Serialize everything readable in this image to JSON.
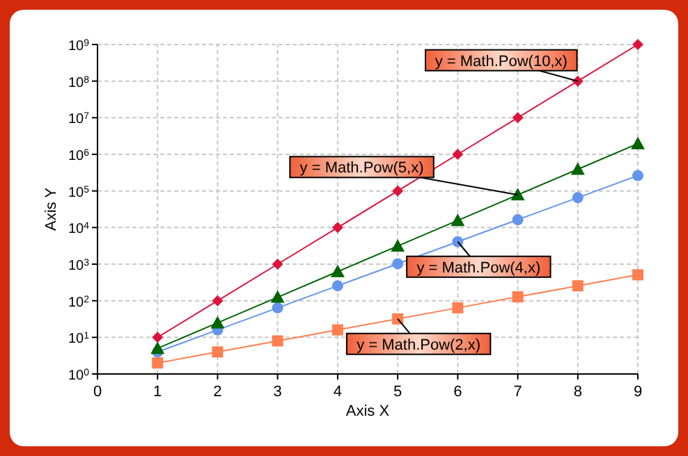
{
  "chart_data": {
    "type": "line",
    "xlabel": "Axis X",
    "ylabel": "Axis Y",
    "log": "y",
    "grid": true,
    "x": [
      1,
      2,
      3,
      4,
      5,
      6,
      7,
      8,
      9
    ],
    "xlim": [
      0,
      9
    ],
    "xticks": [
      0,
      1,
      2,
      3,
      4,
      5,
      6,
      7,
      8,
      9
    ],
    "ylim": [
      1,
      1000000000
    ],
    "yticks": [
      {
        "value": 1,
        "label": "10$^{0}$"
      },
      {
        "value": 10,
        "label": "10$^{1}$"
      },
      {
        "value": 100,
        "label": "10$^{2}$"
      },
      {
        "value": 1000,
        "label": "10$^{3}$"
      },
      {
        "value": 10000,
        "label": "10$^{4}$"
      },
      {
        "value": 100000,
        "label": "10$^{5}$"
      },
      {
        "value": 1000000,
        "label": "10$^{6}$"
      },
      {
        "value": 10000000,
        "label": "10$^{7}$"
      },
      {
        "value": 100000000,
        "label": "10$^{8}$"
      },
      {
        "value": 1000000000,
        "label": "10$^{9}$"
      }
    ],
    "series": [
      {
        "color": "#dc143c",
        "marker": "diamond",
        "values": [
          10,
          100,
          1000,
          10000,
          100000,
          1000000,
          10000000,
          100000000,
          1000000000
        ]
      },
      {
        "color": "#006400",
        "marker": "triangle",
        "values": [
          5,
          25,
          125,
          625,
          3125,
          15625,
          78125,
          390625,
          1953125
        ]
      },
      {
        "color": "#6495ed",
        "marker": "circle",
        "values": [
          4,
          16,
          64,
          256,
          1024,
          4096,
          16384,
          65536,
          262144
        ]
      },
      {
        "color": "#ff7f50",
        "marker": "square",
        "values": [
          2,
          4,
          8,
          16,
          32,
          64,
          128,
          256,
          512
        ]
      }
    ],
    "annotations": [
      {
        "text": "y = Math.Pow(10,x)",
        "x": 8,
        "y": 100000000
      },
      {
        "text": "y = Math.Pow(5,x)",
        "x": 7,
        "y": 78125
      },
      {
        "text": "y = Math.Pow(4,x)",
        "x": 6,
        "y": 4096
      },
      {
        "text": "y = Math.Pow(2,x)",
        "x": 5,
        "y": 32
      }
    ]
  }
}
